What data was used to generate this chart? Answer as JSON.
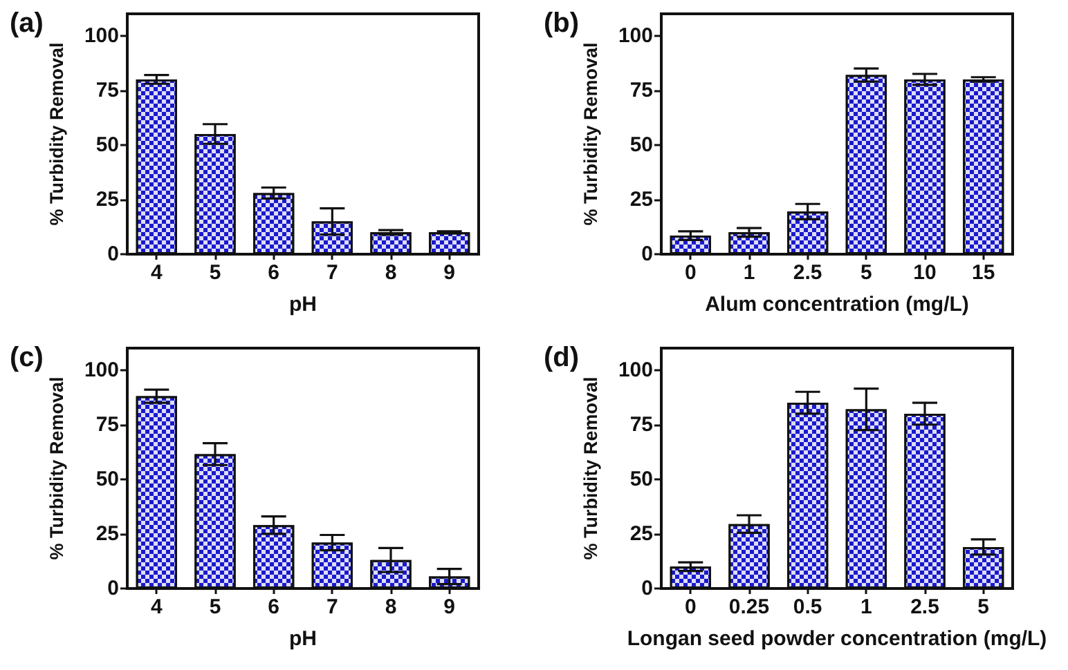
{
  "chart_data": [
    {
      "type": "bar",
      "title": "(a)",
      "xlabel": "pH",
      "ylabel": "% Turbidity Removal",
      "categories": [
        "4",
        "5",
        "6",
        "7",
        "8",
        "9"
      ],
      "values": [
        80,
        55,
        28,
        15,
        10,
        10
      ],
      "errors": [
        2,
        4.5,
        2.5,
        6,
        1,
        0.5
      ],
      "color": "#1a1acc",
      "ylim": [
        0,
        110
      ],
      "yticks": [
        0,
        25,
        50,
        75,
        100
      ],
      "grid": false
    },
    {
      "type": "bar",
      "title": "(b)",
      "xlabel": "Alum concentration (mg/L)",
      "ylabel": "% Turbidity Removal",
      "categories": [
        "0",
        "1",
        "2.5",
        "5",
        "10",
        "15"
      ],
      "values": [
        8.5,
        10,
        19.5,
        82,
        80,
        80
      ],
      "errors": [
        2,
        2,
        3.5,
        3,
        2.5,
        1
      ],
      "color": "#1a1acc",
      "ylim": [
        0,
        110
      ],
      "yticks": [
        0,
        25,
        50,
        75,
        100
      ],
      "grid": false
    },
    {
      "type": "bar",
      "title": "(c)",
      "xlabel": "pH",
      "ylabel": "% Turbidity Removal",
      "categories": [
        "4",
        "5",
        "6",
        "7",
        "8",
        "9"
      ],
      "values": [
        88,
        61.5,
        29,
        21,
        13,
        5.5
      ],
      "errors": [
        3,
        5,
        4,
        3.5,
        5.5,
        3.5
      ],
      "color": "#1a1acc",
      "ylim": [
        0,
        110
      ],
      "yticks": [
        0,
        25,
        50,
        75,
        100
      ],
      "grid": false
    },
    {
      "type": "bar",
      "title": "(d)",
      "xlabel": "Longan seed powder concentration (mg/L)",
      "ylabel": "% Turbidity Removal",
      "categories": [
        "0",
        "0.25",
        "0.5",
        "1",
        "2.5",
        "5"
      ],
      "values": [
        10,
        29.5,
        85,
        82,
        80,
        19
      ],
      "errors": [
        2,
        4,
        5,
        9.5,
        5,
        3.5
      ],
      "color": "#1a1acc",
      "ylim": [
        0,
        110
      ],
      "yticks": [
        0,
        25,
        50,
        75,
        100
      ],
      "grid": false
    }
  ]
}
